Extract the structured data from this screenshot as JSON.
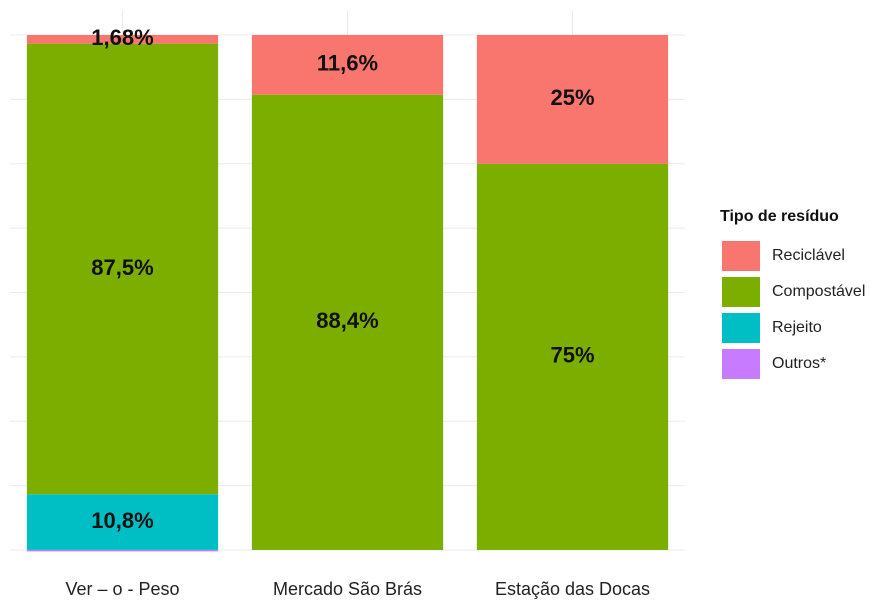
{
  "chart_data": {
    "type": "stacked_bar",
    "categories": [
      "Ver – o - Peso",
      "Mercado  São Brás",
      "Estação das Docas"
    ],
    "series": [
      {
        "name": "Reciclável",
        "color": "#F8766D",
        "values": [
          1.68,
          11.6,
          25
        ],
        "value_labels": [
          "1,68%",
          "11,6%",
          "25%"
        ]
      },
      {
        "name": "Compostável",
        "color": "#7CAE00",
        "values": [
          87.5,
          88.4,
          75
        ],
        "value_labels": [
          "87,5%",
          "88,4%",
          "75%"
        ]
      },
      {
        "name": "Rejeito",
        "color": "#00BFC4",
        "values": [
          10.8,
          0,
          0
        ],
        "value_labels": [
          "10,8%",
          null,
          null
        ]
      },
      {
        "name": "Outros*",
        "color": "#C77CFF",
        "values": [
          0.02,
          0,
          0
        ]
      }
    ],
    "legend_title": "Tipo de resíduo",
    "legend_position": "right",
    "ylim": [
      0,
      100
    ],
    "yticks": [
      0,
      12.5,
      25,
      37.5,
      50,
      62.5,
      75,
      87.5,
      100
    ],
    "grid": true
  }
}
